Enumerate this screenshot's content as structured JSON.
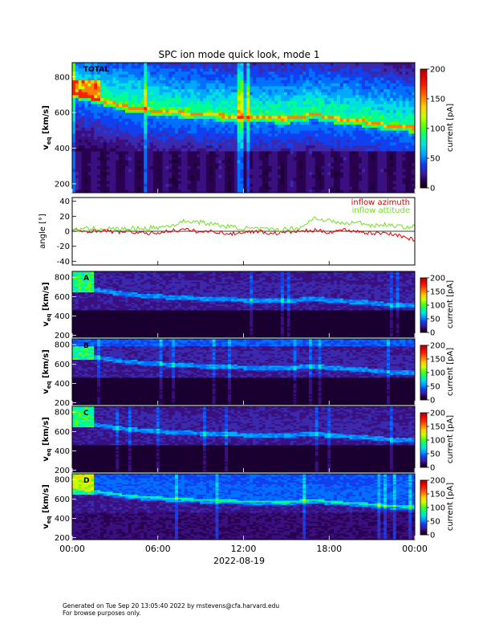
{
  "chart_data": {
    "title": "SPC ion mode quick look, mode 1",
    "xlabel": "2022-08-19",
    "x_ticks": [
      "00:00",
      "06:00",
      "12:00",
      "18:00",
      "00:00"
    ],
    "x_range_hours": [
      0,
      24
    ],
    "panels": [
      {
        "type": "heatmap",
        "label": "TOTAL",
        "ylabel_main": "v",
        "ylabel_sub": "eq",
        "ylabel_units": "[km/s]",
        "yticks": [
          200,
          400,
          600,
          800
        ],
        "ylim": [
          150,
          880
        ],
        "colorbar_label": "current [pA]",
        "colorbar_ticks": [
          0,
          50,
          100,
          150,
          200
        ],
        "colorbar_range": [
          0,
          200
        ],
        "peak_speed_kms": [
          {
            "t": 0,
            "v": 700
          },
          {
            "t": 2,
            "v": 660
          },
          {
            "t": 4,
            "v": 620
          },
          {
            "t": 6,
            "v": 600
          },
          {
            "t": 9,
            "v": 580
          },
          {
            "t": 12,
            "v": 565
          },
          {
            "t": 15,
            "v": 555
          },
          {
            "t": 17,
            "v": 580
          },
          {
            "t": 18,
            "v": 560
          },
          {
            "t": 20,
            "v": 545
          },
          {
            "t": 22,
            "v": 520
          },
          {
            "t": 24,
            "v": 505
          }
        ]
      },
      {
        "type": "line",
        "ylabel": "angle [°]",
        "yticks": [
          -40,
          -20,
          0,
          20,
          40
        ],
        "ylim": [
          -45,
          45
        ],
        "series": [
          {
            "name": "inflow azimuth",
            "color": "#e00000",
            "x": [
              0,
              1,
              2,
              3,
              4,
              5,
              6,
              7,
              8,
              9,
              10,
              11,
              12,
              13,
              14,
              15,
              16,
              17,
              18,
              19,
              20,
              21,
              22,
              23,
              24
            ],
            "y": [
              1,
              0,
              1,
              -1,
              0,
              -3,
              -2,
              1,
              2,
              -1,
              0,
              -4,
              -1,
              0,
              -3,
              -1,
              0,
              1,
              -1,
              2,
              0,
              -3,
              -2,
              -6,
              -12
            ]
          },
          {
            "name": "inflow attitude",
            "color": "#70e020",
            "x": [
              0,
              1,
              2,
              3,
              4,
              5,
              6,
              7,
              8,
              9,
              10,
              11,
              12,
              13,
              14,
              15,
              16,
              17,
              18,
              19,
              20,
              21,
              22,
              23,
              24
            ],
            "y": [
              2,
              3,
              4,
              3,
              3,
              4,
              5,
              8,
              14,
              12,
              9,
              6,
              4,
              3,
              2,
              3,
              5,
              18,
              14,
              10,
              12,
              8,
              9,
              6,
              6
            ]
          }
        ]
      },
      {
        "type": "heatmap",
        "label": "A",
        "ylabel_main": "v",
        "ylabel_sub": "eq",
        "ylabel_units": "[km/s]",
        "yticks": [
          200,
          400,
          600,
          800
        ],
        "ylim": [
          180,
          860
        ],
        "colorbar_label": "current [pA]",
        "colorbar_ticks": [
          0,
          50,
          100,
          150,
          200
        ],
        "colorbar_range": [
          0,
          200
        ]
      },
      {
        "type": "heatmap",
        "label": "B",
        "ylabel_main": "v",
        "ylabel_sub": "eq",
        "ylabel_units": "[km/s]",
        "yticks": [
          200,
          400,
          600,
          800
        ],
        "ylim": [
          180,
          860
        ],
        "colorbar_label": "current [pA]",
        "colorbar_ticks": [
          0,
          50,
          100,
          150,
          200
        ],
        "colorbar_range": [
          0,
          200
        ]
      },
      {
        "type": "heatmap",
        "label": "C",
        "ylabel_main": "v",
        "ylabel_sub": "eq",
        "ylabel_units": "[km/s]",
        "yticks": [
          200,
          400,
          600,
          800
        ],
        "ylim": [
          180,
          860
        ],
        "colorbar_label": "current [pA]",
        "colorbar_ticks": [
          0,
          50,
          100,
          150,
          200
        ],
        "colorbar_range": [
          0,
          200
        ]
      },
      {
        "type": "heatmap",
        "label": "D",
        "ylabel_main": "v",
        "ylabel_sub": "eq",
        "ylabel_units": "[km/s]",
        "yticks": [
          200,
          400,
          600,
          800
        ],
        "ylim": [
          180,
          860
        ],
        "colorbar_label": "current [pA]",
        "colorbar_ticks": [
          0,
          50,
          100,
          150,
          200
        ],
        "colorbar_range": [
          0,
          200
        ]
      }
    ]
  },
  "footer": {
    "line1": "Generated on Tue Sep 20 13:05:40 2022 by mstevens@cfa.harvard.edu",
    "line2": "For browse purposes only."
  }
}
